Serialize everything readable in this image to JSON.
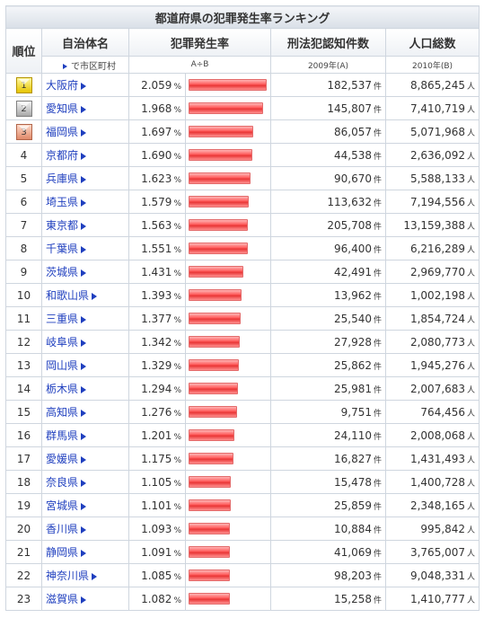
{
  "table_title": "都道府県の犯罪発生率ランキング",
  "headers": {
    "rank": "順位",
    "name": "自治体名",
    "name_sub": "で市区町村",
    "rate": "犯罪発生率",
    "rate_sub": "A÷B",
    "crimes": "刑法犯認知件数",
    "crimes_sub": "2009年(A)",
    "population": "人口総数",
    "population_sub": "2010年(B)"
  },
  "units": {
    "rate": "%",
    "count": "件",
    "people": "人"
  },
  "colors": {
    "bar": "#ff5a5a",
    "link": "#1f3fbf",
    "gold": "#e6c400",
    "silver": "#a9a9a9",
    "bronze": "#e08a6a"
  },
  "rows": [
    {
      "rank": "1",
      "name": "大阪府",
      "rate": "2.059",
      "rate_value": 2.059,
      "crimes": "182,537",
      "population": "8,865,245"
    },
    {
      "rank": "2",
      "name": "愛知県",
      "rate": "1.968",
      "rate_value": 1.968,
      "crimes": "145,807",
      "population": "7,410,719"
    },
    {
      "rank": "3",
      "name": "福岡県",
      "rate": "1.697",
      "rate_value": 1.697,
      "crimes": "86,057",
      "population": "5,071,968"
    },
    {
      "rank": "4",
      "name": "京都府",
      "rate": "1.690",
      "rate_value": 1.69,
      "crimes": "44,538",
      "population": "2,636,092"
    },
    {
      "rank": "5",
      "name": "兵庫県",
      "rate": "1.623",
      "rate_value": 1.623,
      "crimes": "90,670",
      "population": "5,588,133"
    },
    {
      "rank": "6",
      "name": "埼玉県",
      "rate": "1.579",
      "rate_value": 1.579,
      "crimes": "113,632",
      "population": "7,194,556"
    },
    {
      "rank": "7",
      "name": "東京都",
      "rate": "1.563",
      "rate_value": 1.563,
      "crimes": "205,708",
      "population": "13,159,388"
    },
    {
      "rank": "8",
      "name": "千葉県",
      "rate": "1.551",
      "rate_value": 1.551,
      "crimes": "96,400",
      "population": "6,216,289"
    },
    {
      "rank": "9",
      "name": "茨城県",
      "rate": "1.431",
      "rate_value": 1.431,
      "crimes": "42,491",
      "population": "2,969,770"
    },
    {
      "rank": "10",
      "name": "和歌山県",
      "rate": "1.393",
      "rate_value": 1.393,
      "crimes": "13,962",
      "population": "1,002,198"
    },
    {
      "rank": "11",
      "name": "三重県",
      "rate": "1.377",
      "rate_value": 1.377,
      "crimes": "25,540",
      "population": "1,854,724"
    },
    {
      "rank": "12",
      "name": "岐阜県",
      "rate": "1.342",
      "rate_value": 1.342,
      "crimes": "27,928",
      "population": "2,080,773"
    },
    {
      "rank": "13",
      "name": "岡山県",
      "rate": "1.329",
      "rate_value": 1.329,
      "crimes": "25,862",
      "population": "1,945,276"
    },
    {
      "rank": "14",
      "name": "栃木県",
      "rate": "1.294",
      "rate_value": 1.294,
      "crimes": "25,981",
      "population": "2,007,683"
    },
    {
      "rank": "15",
      "name": "高知県",
      "rate": "1.276",
      "rate_value": 1.276,
      "crimes": "9,751",
      "population": "764,456"
    },
    {
      "rank": "16",
      "name": "群馬県",
      "rate": "1.201",
      "rate_value": 1.201,
      "crimes": "24,110",
      "population": "2,008,068"
    },
    {
      "rank": "17",
      "name": "愛媛県",
      "rate": "1.175",
      "rate_value": 1.175,
      "crimes": "16,827",
      "population": "1,431,493"
    },
    {
      "rank": "18",
      "name": "奈良県",
      "rate": "1.105",
      "rate_value": 1.105,
      "crimes": "15,478",
      "population": "1,400,728"
    },
    {
      "rank": "19",
      "name": "宮城県",
      "rate": "1.101",
      "rate_value": 1.101,
      "crimes": "25,859",
      "population": "2,348,165"
    },
    {
      "rank": "20",
      "name": "香川県",
      "rate": "1.093",
      "rate_value": 1.093,
      "crimes": "10,884",
      "population": "995,842"
    },
    {
      "rank": "21",
      "name": "静岡県",
      "rate": "1.091",
      "rate_value": 1.091,
      "crimes": "41,069",
      "population": "3,765,007"
    },
    {
      "rank": "22",
      "name": "神奈川県",
      "rate": "1.085",
      "rate_value": 1.085,
      "crimes": "98,203",
      "population": "9,048,331"
    },
    {
      "rank": "23",
      "name": "滋賀県",
      "rate": "1.082",
      "rate_value": 1.082,
      "crimes": "15,258",
      "population": "1,410,777"
    }
  ]
}
